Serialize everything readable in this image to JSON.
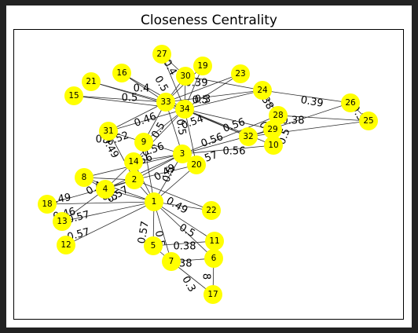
{
  "title": "Closeness Centrality",
  "colors": {
    "node": "#ffff00",
    "edge": "#2b2b2b",
    "frame": "#000000",
    "outer": "#222222"
  },
  "nodes": [
    "1",
    "2",
    "3",
    "4",
    "5",
    "6",
    "7",
    "8",
    "9",
    "10",
    "11",
    "12",
    "13",
    "14",
    "15",
    "16",
    "17",
    "18",
    "19",
    "20",
    "21",
    "22",
    "23",
    "24",
    "25",
    "26",
    "27",
    "28",
    "29",
    "30",
    "31",
    "32",
    "33",
    "34"
  ],
  "edges": [
    [
      "1",
      "2"
    ],
    [
      "1",
      "3"
    ],
    [
      "1",
      "4"
    ],
    [
      "1",
      "5"
    ],
    [
      "1",
      "6"
    ],
    [
      "1",
      "7"
    ],
    [
      "1",
      "8"
    ],
    [
      "1",
      "9"
    ],
    [
      "1",
      "11"
    ],
    [
      "1",
      "12"
    ],
    [
      "1",
      "13"
    ],
    [
      "1",
      "14"
    ],
    [
      "1",
      "18"
    ],
    [
      "1",
      "20"
    ],
    [
      "1",
      "22"
    ],
    [
      "2",
      "3"
    ],
    [
      "2",
      "4"
    ],
    [
      "2",
      "8"
    ],
    [
      "2",
      "14"
    ],
    [
      "2",
      "18"
    ],
    [
      "2",
      "20"
    ],
    [
      "2",
      "22"
    ],
    [
      "2",
      "31"
    ],
    [
      "3",
      "4"
    ],
    [
      "3",
      "8"
    ],
    [
      "3",
      "9"
    ],
    [
      "3",
      "10"
    ],
    [
      "3",
      "14"
    ],
    [
      "3",
      "28"
    ],
    [
      "3",
      "29"
    ],
    [
      "3",
      "33"
    ],
    [
      "4",
      "8"
    ],
    [
      "4",
      "13"
    ],
    [
      "4",
      "14"
    ],
    [
      "5",
      "7"
    ],
    [
      "5",
      "11"
    ],
    [
      "6",
      "7"
    ],
    [
      "6",
      "11"
    ],
    [
      "6",
      "17"
    ],
    [
      "7",
      "17"
    ],
    [
      "9",
      "31"
    ],
    [
      "9",
      "33"
    ],
    [
      "9",
      "34"
    ],
    [
      "10",
      "34"
    ],
    [
      "14",
      "34"
    ],
    [
      "15",
      "33"
    ],
    [
      "15",
      "34"
    ],
    [
      "16",
      "33"
    ],
    [
      "16",
      "34"
    ],
    [
      "19",
      "33"
    ],
    [
      "19",
      "34"
    ],
    [
      "20",
      "34"
    ],
    [
      "21",
      "33"
    ],
    [
      "21",
      "34"
    ],
    [
      "23",
      "33"
    ],
    [
      "23",
      "34"
    ],
    [
      "24",
      "26"
    ],
    [
      "24",
      "28"
    ],
    [
      "24",
      "30"
    ],
    [
      "24",
      "33"
    ],
    [
      "24",
      "34"
    ],
    [
      "25",
      "26"
    ],
    [
      "25",
      "28"
    ],
    [
      "25",
      "32"
    ],
    [
      "26",
      "32"
    ],
    [
      "27",
      "30"
    ],
    [
      "27",
      "34"
    ],
    [
      "29",
      "32"
    ],
    [
      "29",
      "34"
    ],
    [
      "30",
      "33"
    ],
    [
      "30",
      "34"
    ],
    [
      "31",
      "33"
    ],
    [
      "31",
      "34"
    ],
    [
      "32",
      "33"
    ],
    [
      "32",
      "34"
    ],
    [
      "33",
      "34"
    ]
  ],
  "edge_labels": [
    {
      "text": "0.49",
      "rot": -10
    },
    {
      "text": "0.46",
      "rot": -15
    },
    {
      "text": "0.57",
      "rot": -15
    },
    {
      "text": "0.57",
      "rot": -15
    },
    {
      "text": "0.5",
      "rot": 0
    },
    {
      "text": "0.4",
      "rot": -30
    },
    {
      "text": "0.57",
      "rot": -30
    },
    {
      "text": "0.57",
      "rot": -80
    },
    {
      "text": "0.49",
      "rot": 30
    },
    {
      "text": "0.5",
      "rot": 30
    },
    {
      "text": "0.38",
      "rot": 0
    },
    {
      "text": "0.5",
      "rot": 80
    },
    {
      "text": "0.38",
      "rot": 0
    },
    {
      "text": "0.3",
      "rot": 60
    },
    {
      "text": "8",
      "rot": 90
    },
    {
      "text": "0.57",
      "rot": -20
    },
    {
      "text": "0.5",
      "rot": -70
    },
    {
      "text": "0.49",
      "rot": -30
    },
    {
      "text": "0.56",
      "rot": -20
    },
    {
      "text": "0.49",
      "rot": 60
    },
    {
      "text": "0.52",
      "rot": -20
    },
    {
      "text": "0.56",
      "rot": -20
    },
    {
      "text": "0.5",
      "rot": -60
    },
    {
      "text": "0.46",
      "rot": -20
    },
    {
      "text": "0.54",
      "rot": -20
    },
    {
      "text": "0.5",
      "rot": 80
    },
    {
      "text": "0.56",
      "rot": -20
    },
    {
      "text": "0.56",
      "rot": 0
    },
    {
      "text": "0.39",
      "rot": 0
    },
    {
      "text": "0.39",
      "rot": 10
    },
    {
      "text": "0.38",
      "rot": 0
    },
    {
      "text": "0.38",
      "rot": 60
    },
    {
      "text": "0.3",
      "rot": 60
    },
    {
      "text": "0.4",
      "rot": 60
    },
    {
      "text": "0.5",
      "rot": 0
    },
    {
      "text": "0.4",
      "rot": 0
    },
    {
      "text": "0.3",
      "rot": 0
    },
    {
      "text": "0.4",
      "rot": 60
    },
    {
      "text": "0.56",
      "rot": -20
    },
    {
      "text": "0.5",
      "rot": 60
    },
    {
      "text": "0.5",
      "rot": 0
    },
    {
      "text": "0.5",
      "rot": -70
    },
    {
      "text": "0.3",
      "rot": 0
    }
  ]
}
